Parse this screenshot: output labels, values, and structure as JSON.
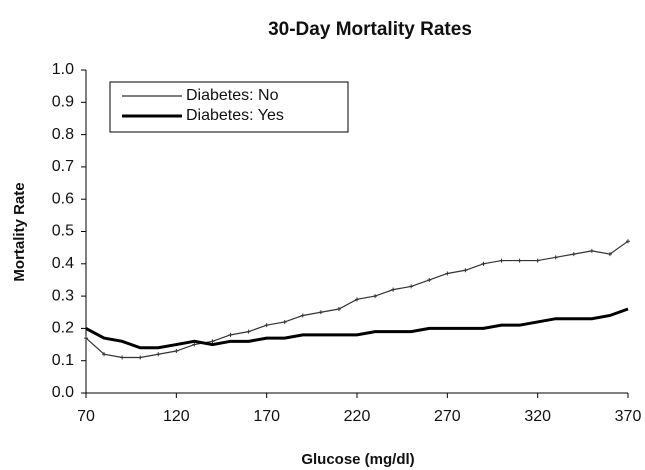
{
  "chart_data": {
    "type": "line",
    "title": "30-Day Mortality Rates",
    "x_label": "Glucose (mg/dl)",
    "y_label": "Mortality Rate",
    "x": [
      70,
      80,
      90,
      100,
      110,
      120,
      130,
      140,
      150,
      160,
      170,
      180,
      190,
      200,
      210,
      220,
      230,
      240,
      250,
      260,
      270,
      280,
      290,
      300,
      310,
      320,
      330,
      340,
      350,
      360,
      370
    ],
    "series": [
      {
        "name": "Diabetes: No",
        "color": "#333333",
        "values": [
          0.17,
          0.12,
          0.11,
          0.11,
          0.12,
          0.13,
          0.15,
          0.16,
          0.18,
          0.19,
          0.21,
          0.22,
          0.24,
          0.25,
          0.26,
          0.29,
          0.3,
          0.32,
          0.33,
          0.35,
          0.37,
          0.38,
          0.4,
          0.41,
          0.41,
          0.41,
          0.42,
          0.43,
          0.44,
          0.43,
          0.47
        ]
      },
      {
        "name": "Diabetes: Yes",
        "color": "#000000",
        "values": [
          0.2,
          0.17,
          0.16,
          0.14,
          0.14,
          0.15,
          0.16,
          0.15,
          0.16,
          0.16,
          0.17,
          0.17,
          0.18,
          0.18,
          0.18,
          0.18,
          0.19,
          0.19,
          0.19,
          0.2,
          0.2,
          0.2,
          0.2,
          0.21,
          0.21,
          0.22,
          0.23,
          0.23,
          0.23,
          0.24,
          0.26
        ]
      }
    ],
    "xlim": [
      70,
      370
    ],
    "xticks": [
      70,
      120,
      170,
      220,
      270,
      320,
      370
    ],
    "ylim": [
      0,
      1
    ],
    "yticks": [
      {
        "value": 0,
        "label": "0.0"
      },
      0.1,
      0.2,
      0.3,
      0.4,
      0.5,
      0.6,
      0.7,
      0.8,
      0.9,
      {
        "value": 1,
        "label": "1.0"
      }
    ],
    "legend": "upper left"
  }
}
